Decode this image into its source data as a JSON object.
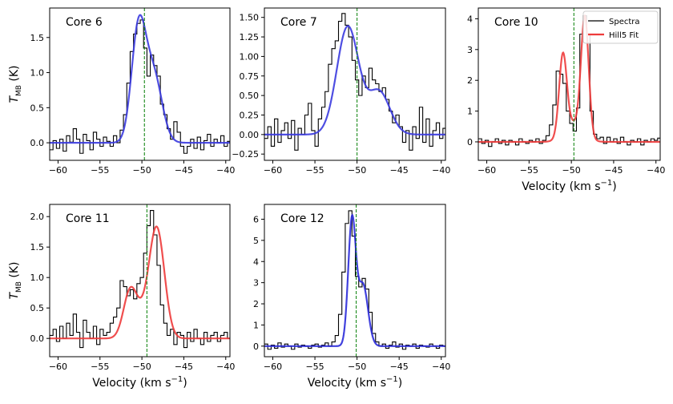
{
  "chart_data": [
    {
      "type": "line",
      "panel": "Core 6",
      "title": "Core 6",
      "xlabel": "",
      "ylabel": "T_MB (K)",
      "xlim": [
        -61,
        -39.5
      ],
      "ylim": [
        -0.25,
        1.92
      ],
      "xticks": [
        -60,
        -55,
        -50,
        -45,
        -40
      ],
      "xtick_labels": [
        "−60",
        "−55",
        "−50",
        "−45",
        "−40"
      ],
      "yticks": [
        0.0,
        0.5,
        1.0,
        1.5
      ],
      "ytick_labels": [
        "0.0",
        "0.5",
        "1.0",
        "1.5"
      ],
      "vline": -49.7,
      "fit_color": "#3b3bdf",
      "fit": {
        "name": "Gaussian fit",
        "components": [
          {
            "amp": 1.6,
            "center": -50.4,
            "sigma": 0.85
          },
          {
            "amp": 0.95,
            "center": -48.6,
            "sigma": 1.0
          }
        ]
      },
      "spectrum": {
        "name": "Spectra",
        "x": [
          -61.0,
          -60.6,
          -60.2,
          -59.8,
          -59.4,
          -59.0,
          -58.6,
          -58.2,
          -57.8,
          -57.4,
          -57.0,
          -56.6,
          -56.2,
          -55.8,
          -55.4,
          -55.0,
          -54.6,
          -54.2,
          -53.8,
          -53.4,
          -53.0,
          -52.6,
          -52.2,
          -51.8,
          -51.4,
          -51.0,
          -50.6,
          -50.2,
          -49.8,
          -49.4,
          -49.0,
          -48.6,
          -48.2,
          -47.8,
          -47.4,
          -47.0,
          -46.6,
          -46.2,
          -45.8,
          -45.4,
          -45.0,
          -44.6,
          -44.2,
          -43.8,
          -43.4,
          -43.0,
          -42.6,
          -42.2,
          -41.8,
          -41.4,
          -41.0,
          -40.6,
          -40.2,
          -39.8
        ],
        "y": [
          -0.1,
          0.03,
          -0.08,
          0.05,
          -0.12,
          0.1,
          0.01,
          0.2,
          0.05,
          -0.15,
          0.12,
          0.03,
          -0.1,
          0.15,
          0.05,
          -0.05,
          0.08,
          0.02,
          -0.05,
          0.1,
          0.0,
          0.18,
          0.4,
          0.85,
          1.3,
          1.55,
          1.7,
          1.75,
          1.35,
          0.95,
          1.25,
          1.1,
          0.95,
          0.55,
          0.4,
          0.2,
          0.05,
          0.3,
          0.15,
          -0.05,
          -0.15,
          -0.05,
          0.05,
          -0.08,
          0.08,
          -0.1,
          0.03,
          0.12,
          -0.05,
          0.05,
          0.0,
          0.1,
          -0.05,
          0.02
        ]
      }
    },
    {
      "type": "line",
      "panel": "Core 7",
      "title": "Core 7",
      "xlabel": "",
      "ylabel": "",
      "xlim": [
        -61,
        -39.5
      ],
      "ylim": [
        -0.33,
        1.62
      ],
      "xticks": [
        -60,
        -55,
        -50,
        -45,
        -40
      ],
      "xtick_labels": [
        "−60",
        "−55",
        "−50",
        "−45",
        "−40"
      ],
      "yticks": [
        -0.25,
        0.0,
        0.25,
        0.5,
        0.75,
        1.0,
        1.25,
        1.5
      ],
      "ytick_labels": [
        "−0.25",
        "0.00",
        "0.25",
        "0.50",
        "0.75",
        "1.00",
        "1.25",
        "1.50"
      ],
      "vline": -50.0,
      "fit_color": "#3b3bdf",
      "fit": {
        "name": "Gaussian fit",
        "components": [
          {
            "amp": 1.38,
            "center": -51.1,
            "sigma": 1.3
          },
          {
            "amp": 0.55,
            "center": -47.4,
            "sigma": 1.3
          }
        ]
      },
      "spectrum": {
        "name": "Spectra",
        "x": [
          -61.0,
          -60.6,
          -60.2,
          -59.8,
          -59.4,
          -59.0,
          -58.6,
          -58.2,
          -57.8,
          -57.4,
          -57.0,
          -56.6,
          -56.2,
          -55.8,
          -55.4,
          -55.0,
          -54.6,
          -54.2,
          -53.8,
          -53.4,
          -53.0,
          -52.6,
          -52.2,
          -51.8,
          -51.4,
          -51.0,
          -50.6,
          -50.2,
          -49.8,
          -49.4,
          -49.0,
          -48.6,
          -48.2,
          -47.8,
          -47.4,
          -47.0,
          -46.6,
          -46.2,
          -45.8,
          -45.4,
          -45.0,
          -44.6,
          -44.2,
          -43.8,
          -43.4,
          -43.0,
          -42.6,
          -42.2,
          -41.8,
          -41.4,
          -41.0,
          -40.6,
          -40.2,
          -39.8
        ],
        "y": [
          -0.05,
          0.1,
          -0.15,
          0.2,
          -0.1,
          0.05,
          0.15,
          -0.05,
          0.18,
          -0.2,
          0.08,
          0.0,
          0.25,
          0.4,
          0.05,
          -0.15,
          0.2,
          0.35,
          0.55,
          0.9,
          1.1,
          1.2,
          1.45,
          1.55,
          1.4,
          1.25,
          0.95,
          0.7,
          0.5,
          0.75,
          0.6,
          0.85,
          0.7,
          0.65,
          0.55,
          0.6,
          0.45,
          0.3,
          0.15,
          0.25,
          0.1,
          -0.1,
          0.05,
          -0.2,
          0.1,
          -0.05,
          0.35,
          -0.1,
          0.2,
          -0.15,
          0.05,
          0.15,
          -0.05,
          0.08
        ]
      }
    },
    {
      "type": "line",
      "panel": "Core 10",
      "title": "Core 10",
      "xlabel": "Velocity (km s⁻¹)",
      "ylabel": "",
      "xlim": [
        -61,
        -39.5
      ],
      "ylim": [
        -0.6,
        4.35
      ],
      "xticks": [
        -60,
        -55,
        -50,
        -45,
        -40
      ],
      "xtick_labels": [
        "−60",
        "−55",
        "−50",
        "−45",
        "−40"
      ],
      "yticks": [
        0,
        1,
        2,
        3,
        4
      ],
      "ytick_labels": [
        "0",
        "1",
        "2",
        "3",
        "4"
      ],
      "vline": -49.7,
      "fit_color": "#ee3b3b",
      "fit": {
        "name": "Hill5 Fit",
        "components": [
          {
            "amp": 2.6,
            "center": -51.0,
            "sigma": 0.45
          },
          {
            "amp": 3.8,
            "center": -48.4,
            "sigma": 0.45
          },
          {
            "amp": 0.6,
            "center": -49.7,
            "sigma": 1.1
          }
        ]
      },
      "spectrum": {
        "name": "Spectra",
        "x": [
          -61.0,
          -60.6,
          -60.2,
          -59.8,
          -59.4,
          -59.0,
          -58.6,
          -58.2,
          -57.8,
          -57.4,
          -57.0,
          -56.6,
          -56.2,
          -55.8,
          -55.4,
          -55.0,
          -54.6,
          -54.2,
          -53.8,
          -53.4,
          -53.0,
          -52.6,
          -52.2,
          -51.8,
          -51.4,
          -51.0,
          -50.6,
          -50.2,
          -49.8,
          -49.4,
          -49.0,
          -48.6,
          -48.2,
          -47.8,
          -47.4,
          -47.0,
          -46.6,
          -46.2,
          -45.8,
          -45.4,
          -45.0,
          -44.6,
          -44.2,
          -43.8,
          -43.4,
          -43.0,
          -42.6,
          -42.2,
          -41.8,
          -41.4,
          -41.0,
          -40.6,
          -40.2,
          -39.8
        ],
        "y": [
          0.1,
          -0.05,
          0.05,
          -0.15,
          0.0,
          0.1,
          -0.05,
          0.05,
          -0.1,
          0.05,
          0.0,
          -0.1,
          0.1,
          0.0,
          -0.05,
          0.05,
          0.0,
          0.1,
          -0.05,
          0.05,
          0.2,
          0.55,
          1.2,
          2.3,
          2.2,
          1.9,
          1.0,
          0.6,
          0.35,
          1.1,
          3.5,
          4.1,
          3.5,
          1.0,
          0.25,
          0.1,
          0.15,
          -0.05,
          0.15,
          0.0,
          0.1,
          -0.05,
          0.15,
          0.0,
          -0.1,
          0.05,
          0.0,
          0.1,
          -0.1,
          0.05,
          0.0,
          0.1,
          0.05,
          0.12
        ]
      },
      "legend": {
        "position": "top-right",
        "entries": [
          {
            "label": "Spectra",
            "color": "#000000"
          },
          {
            "label": "Hill5 Fit",
            "color": "#ee3b3b"
          }
        ]
      }
    },
    {
      "type": "line",
      "panel": "Core 11",
      "title": "Core 11",
      "xlabel": "Velocity (km s⁻¹)",
      "ylabel": "T_MB (K)",
      "xlim": [
        -61,
        -39.5
      ],
      "ylim": [
        -0.3,
        2.2
      ],
      "xticks": [
        -60,
        -55,
        -50,
        -45,
        -40
      ],
      "xtick_labels": [
        "−60",
        "−55",
        "−50",
        "−45",
        "−40"
      ],
      "yticks": [
        0.0,
        0.5,
        1.0,
        1.5,
        2.0
      ],
      "ytick_labels": [
        "0.0",
        "0.5",
        "1.0",
        "1.5",
        "2.0"
      ],
      "vline": -49.4,
      "fit_color": "#ee3b3b",
      "fit": {
        "name": "Hill5 Fit",
        "components": [
          {
            "amp": 0.75,
            "center": -51.4,
            "sigma": 0.8
          },
          {
            "amp": 1.75,
            "center": -48.2,
            "sigma": 0.9
          },
          {
            "amp": 0.3,
            "center": -49.8,
            "sigma": 1.0
          }
        ]
      },
      "spectrum": {
        "name": "Spectra",
        "x": [
          -61.0,
          -60.6,
          -60.2,
          -59.8,
          -59.4,
          -59.0,
          -58.6,
          -58.2,
          -57.8,
          -57.4,
          -57.0,
          -56.6,
          -56.2,
          -55.8,
          -55.4,
          -55.0,
          -54.6,
          -54.2,
          -53.8,
          -53.4,
          -53.0,
          -52.6,
          -52.2,
          -51.8,
          -51.4,
          -51.0,
          -50.6,
          -50.2,
          -49.8,
          -49.4,
          -49.0,
          -48.6,
          -48.2,
          -47.8,
          -47.4,
          -47.0,
          -46.6,
          -46.2,
          -45.8,
          -45.4,
          -45.0,
          -44.6,
          -44.2,
          -43.8,
          -43.4,
          -43.0,
          -42.6,
          -42.2,
          -41.8,
          -41.4,
          -41.0,
          -40.6,
          -40.2,
          -39.8
        ],
        "y": [
          0.05,
          0.15,
          -0.05,
          0.2,
          0.0,
          0.25,
          0.05,
          0.4,
          0.1,
          -0.15,
          0.3,
          0.1,
          0.0,
          0.2,
          -0.1,
          0.15,
          0.05,
          0.1,
          0.25,
          0.35,
          0.5,
          0.95,
          0.85,
          0.7,
          0.8,
          0.65,
          0.9,
          1.0,
          1.4,
          1.85,
          2.1,
          1.7,
          1.2,
          0.55,
          0.25,
          0.05,
          0.15,
          -0.1,
          0.1,
          0.05,
          -0.15,
          0.1,
          -0.05,
          0.15,
          0.0,
          -0.1,
          0.1,
          -0.05,
          0.05,
          0.1,
          -0.05,
          0.05,
          0.1,
          0.0
        ]
      }
    },
    {
      "type": "line",
      "panel": "Core 12",
      "title": "Core 12",
      "xlabel": "Velocity (km s⁻¹)",
      "ylabel": "",
      "xlim": [
        -61,
        -39.5
      ],
      "ylim": [
        -0.5,
        6.7
      ],
      "xticks": [
        -60,
        -55,
        -50,
        -45,
        -40
      ],
      "xtick_labels": [
        "−60",
        "−55",
        "−50",
        "−45",
        "−40"
      ],
      "yticks": [
        0,
        1,
        2,
        3,
        4,
        5,
        6
      ],
      "ytick_labels": [
        "0",
        "1",
        "2",
        "3",
        "4",
        "5",
        "6"
      ],
      "vline": -50.1,
      "fit_color": "#2b2bd9",
      "fit": {
        "name": "Gaussian fit",
        "components": [
          {
            "amp": 5.9,
            "center": -50.6,
            "sigma": 0.45
          },
          {
            "amp": 2.9,
            "center": -49.3,
            "sigma": 0.6
          }
        ]
      },
      "spectrum": {
        "name": "Spectra",
        "x": [
          -61.0,
          -60.6,
          -60.2,
          -59.8,
          -59.4,
          -59.0,
          -58.6,
          -58.2,
          -57.8,
          -57.4,
          -57.0,
          -56.6,
          -56.2,
          -55.8,
          -55.4,
          -55.0,
          -54.6,
          -54.2,
          -53.8,
          -53.4,
          -53.0,
          -52.6,
          -52.2,
          -51.8,
          -51.4,
          -51.0,
          -50.6,
          -50.2,
          -49.8,
          -49.4,
          -49.0,
          -48.6,
          -48.2,
          -47.8,
          -47.4,
          -47.0,
          -46.6,
          -46.2,
          -45.8,
          -45.4,
          -45.0,
          -44.6,
          -44.2,
          -43.8,
          -43.4,
          -43.0,
          -42.6,
          -42.2,
          -41.8,
          -41.4,
          -41.0,
          -40.6,
          -40.2,
          -39.8
        ],
        "y": [
          0.1,
          -0.15,
          0.05,
          -0.1,
          0.15,
          -0.05,
          0.1,
          0.0,
          -0.15,
          0.1,
          -0.05,
          0.05,
          0.0,
          -0.1,
          0.05,
          0.1,
          -0.05,
          0.05,
          0.15,
          0.0,
          0.2,
          0.5,
          1.5,
          3.5,
          5.8,
          6.4,
          5.2,
          3.3,
          2.8,
          3.2,
          2.7,
          1.6,
          0.6,
          0.2,
          0.0,
          0.1,
          -0.1,
          0.05,
          0.2,
          -0.05,
          0.1,
          -0.15,
          0.05,
          0.0,
          0.1,
          -0.1,
          0.05,
          0.0,
          -0.05,
          0.1,
          0.0,
          -0.1,
          0.05,
          0.0
        ]
      }
    }
  ]
}
